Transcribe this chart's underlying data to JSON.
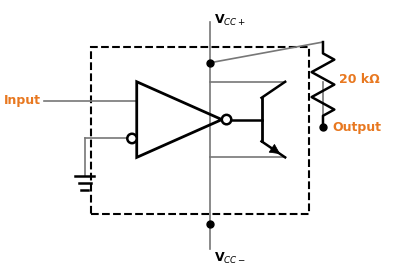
{
  "bg_color": "#ffffff",
  "line_color": "#777777",
  "bold_color": "#000000",
  "blue_color": "#E87820",
  "vcc_plus_label": "V$_{CC+}$",
  "vcc_minus_label": "V$_{CC-}$",
  "input_label": "Input",
  "output_label": "Output",
  "resistor_label": "20 kΩ",
  "figsize": [
    4.0,
    2.75
  ],
  "dpi": 100
}
